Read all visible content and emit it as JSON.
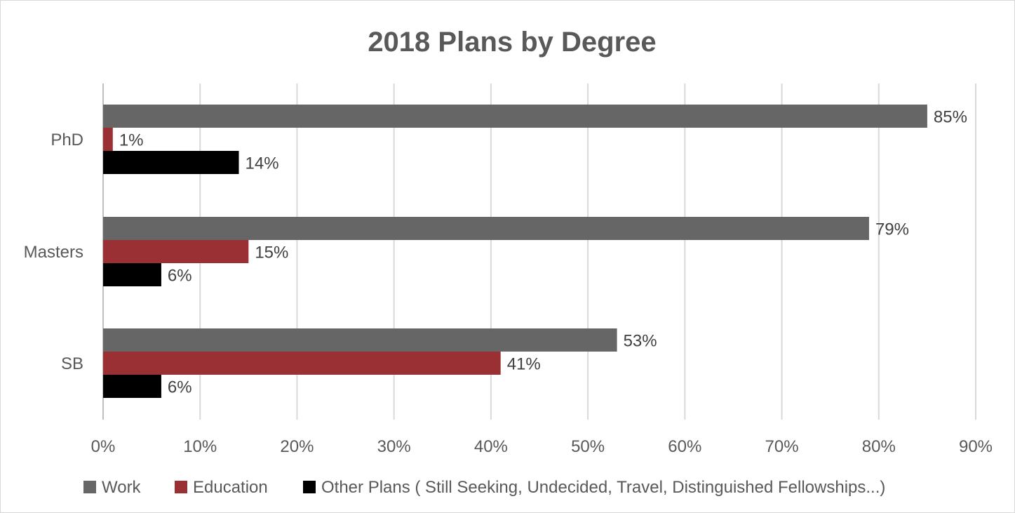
{
  "chart_data": {
    "type": "bar",
    "orientation": "horizontal",
    "title": "2018 Plans by Degree",
    "categories": [
      "PhD",
      "Masters",
      "SB"
    ],
    "series": [
      {
        "name": "Work",
        "color": "#666666",
        "values": [
          85,
          79,
          53
        ],
        "labels": [
          "85%",
          "79%",
          "53%"
        ]
      },
      {
        "name": "Education",
        "color": "#9b3034",
        "values": [
          1,
          15,
          41
        ],
        "labels": [
          "1%",
          "15%",
          "41%"
        ]
      },
      {
        "name": "Other Plans ( Still Seeking, Undecided, Travel, Distinguished Fellowships...)",
        "color": "#000000",
        "values": [
          14,
          6,
          6
        ],
        "labels": [
          "14%",
          "6%",
          "6%"
        ]
      }
    ],
    "xlim": [
      0,
      90
    ],
    "x_ticks": [
      0,
      10,
      20,
      30,
      40,
      50,
      60,
      70,
      80,
      90
    ],
    "x_tick_labels": [
      "0%",
      "10%",
      "20%",
      "30%",
      "40%",
      "50%",
      "60%",
      "70%",
      "80%",
      "90%"
    ],
    "grid": "vertical",
    "legend": "bottom"
  }
}
